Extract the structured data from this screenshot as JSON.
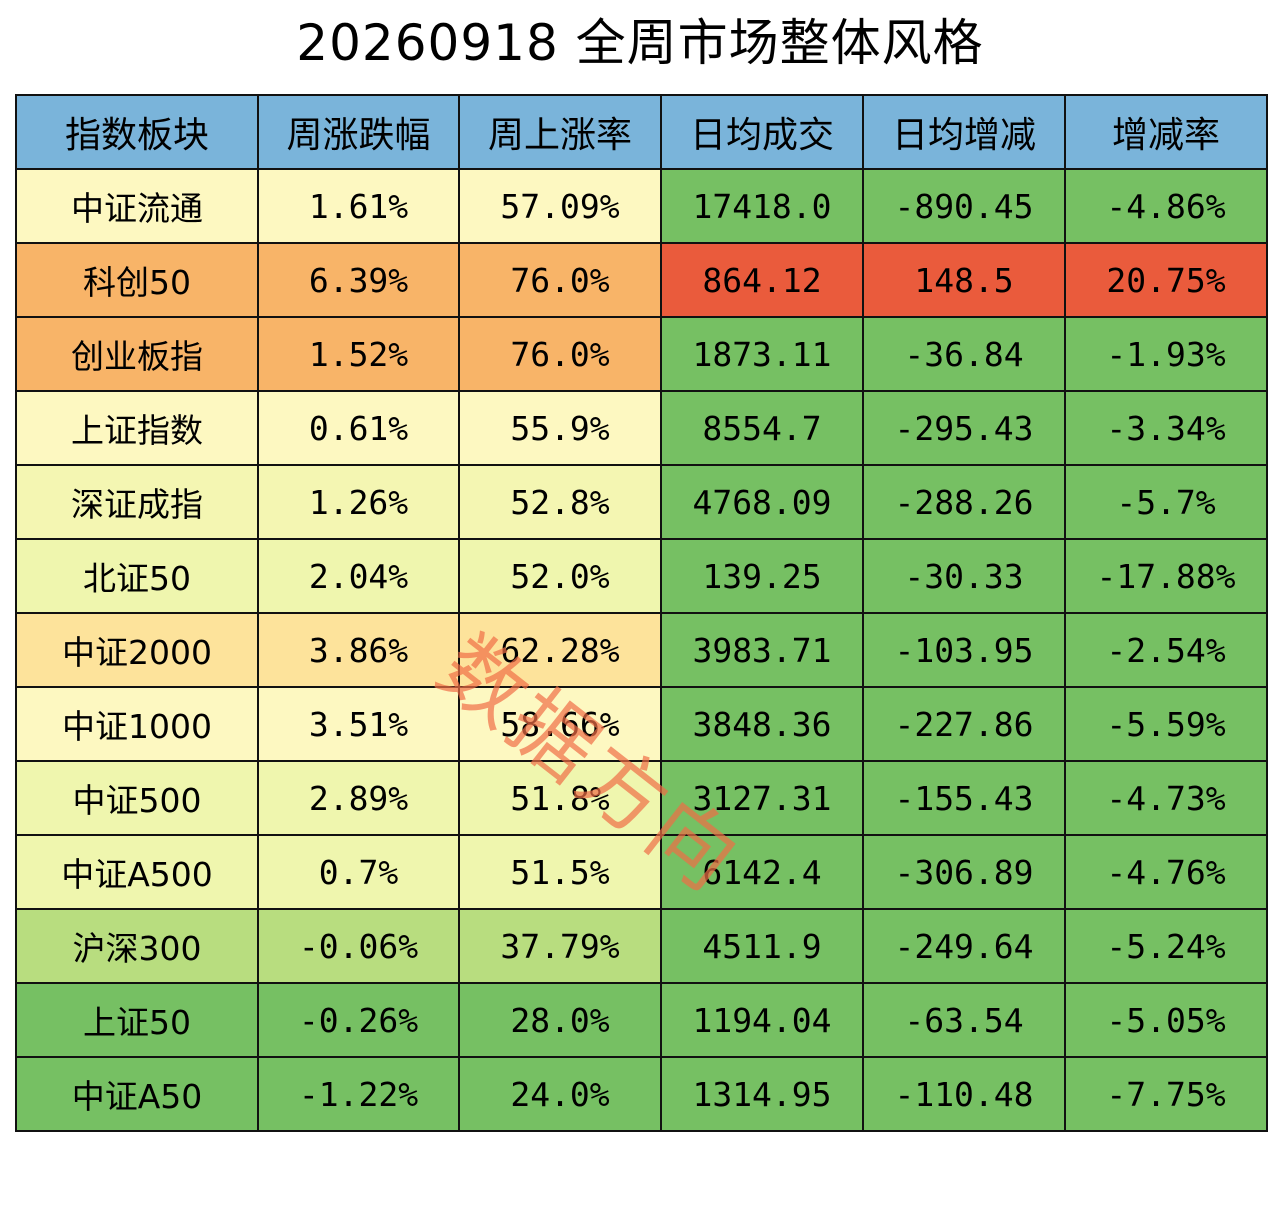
{
  "title": "20260918 全周市场整体风格",
  "watermark": "数据方向",
  "palette": {
    "header": "#7ab4da",
    "pale_yellow": "#fdf8c1",
    "light_yellow": "#f4f6b2",
    "yellow_lime": "#eff6ae",
    "pale_orange": "#fde39b",
    "orange": "#f8b468",
    "lime": "#b8dd7f",
    "green": "#76c063",
    "red": "#ea5b3c"
  },
  "chart_data": {
    "type": "table",
    "title": "20260918 全周市场整体风格",
    "columns": [
      "指数板块",
      "周涨跌幅",
      "周上涨率",
      "日均成交",
      "日均增减",
      "增减率"
    ],
    "rows": [
      {
        "cells": [
          "中证流通",
          "1.61%",
          "57.09%",
          "17418.0",
          "-890.45",
          "-4.86%"
        ],
        "colors": [
          "#fdf8c1",
          "#fdf8c1",
          "#fdf8c1",
          "#76c063",
          "#76c063",
          "#76c063"
        ]
      },
      {
        "cells": [
          "科创50",
          "6.39%",
          "76.0%",
          "864.12",
          "148.5",
          "20.75%"
        ],
        "colors": [
          "#f8b468",
          "#f8b468",
          "#f8b468",
          "#ea5b3c",
          "#ea5b3c",
          "#ea5b3c"
        ]
      },
      {
        "cells": [
          "创业板指",
          "1.52%",
          "76.0%",
          "1873.11",
          "-36.84",
          "-1.93%"
        ],
        "colors": [
          "#f8b468",
          "#f8b468",
          "#f8b468",
          "#76c063",
          "#76c063",
          "#76c063"
        ]
      },
      {
        "cells": [
          "上证指数",
          "0.61%",
          "55.9%",
          "8554.7",
          "-295.43",
          "-3.34%"
        ],
        "colors": [
          "#fdf8c1",
          "#fdf8c1",
          "#fdf8c1",
          "#76c063",
          "#76c063",
          "#76c063"
        ]
      },
      {
        "cells": [
          "深证成指",
          "1.26%",
          "52.8%",
          "4768.09",
          "-288.26",
          "-5.7%"
        ],
        "colors": [
          "#f4f6b2",
          "#f4f6b2",
          "#f4f6b2",
          "#76c063",
          "#76c063",
          "#76c063"
        ]
      },
      {
        "cells": [
          "北证50",
          "2.04%",
          "52.0%",
          "139.25",
          "-30.33",
          "-17.88%"
        ],
        "colors": [
          "#eff6ae",
          "#eff6ae",
          "#eff6ae",
          "#76c063",
          "#76c063",
          "#76c063"
        ]
      },
      {
        "cells": [
          "中证2000",
          "3.86%",
          "62.28%",
          "3983.71",
          "-103.95",
          "-2.54%"
        ],
        "colors": [
          "#fde39b",
          "#fde39b",
          "#fde39b",
          "#76c063",
          "#76c063",
          "#76c063"
        ]
      },
      {
        "cells": [
          "中证1000",
          "3.51%",
          "58.66%",
          "3848.36",
          "-227.86",
          "-5.59%"
        ],
        "colors": [
          "#fdf8c1",
          "#fdf8c1",
          "#fdf8c1",
          "#76c063",
          "#76c063",
          "#76c063"
        ]
      },
      {
        "cells": [
          "中证500",
          "2.89%",
          "51.8%",
          "3127.31",
          "-155.43",
          "-4.73%"
        ],
        "colors": [
          "#eff6ae",
          "#eff6ae",
          "#eff6ae",
          "#76c063",
          "#76c063",
          "#76c063"
        ]
      },
      {
        "cells": [
          "中证A500",
          "0.7%",
          "51.5%",
          "6142.4",
          "-306.89",
          "-4.76%"
        ],
        "colors": [
          "#eff6ae",
          "#eff6ae",
          "#eff6ae",
          "#76c063",
          "#76c063",
          "#76c063"
        ]
      },
      {
        "cells": [
          "沪深300",
          "-0.06%",
          "37.79%",
          "4511.9",
          "-249.64",
          "-5.24%"
        ],
        "colors": [
          "#b8dd7f",
          "#b8dd7f",
          "#b8dd7f",
          "#76c063",
          "#76c063",
          "#76c063"
        ]
      },
      {
        "cells": [
          "上证50",
          "-0.26%",
          "28.0%",
          "1194.04",
          "-63.54",
          "-5.05%"
        ],
        "colors": [
          "#76c063",
          "#76c063",
          "#76c063",
          "#76c063",
          "#76c063",
          "#76c063"
        ]
      },
      {
        "cells": [
          "中证A50",
          "-1.22%",
          "24.0%",
          "1314.95",
          "-110.48",
          "-7.75%"
        ],
        "colors": [
          "#76c063",
          "#76c063",
          "#76c063",
          "#76c063",
          "#76c063",
          "#76c063"
        ]
      }
    ]
  }
}
